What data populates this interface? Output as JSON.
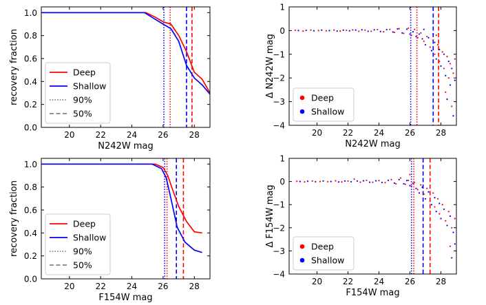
{
  "figure": {
    "colors": {
      "deep": "#ff0000",
      "shallow": "#0000ff",
      "style_legend": "#808080",
      "axis": "#000000"
    }
  },
  "chart_data": [
    {
      "id": "n242w_recovery",
      "type": "line",
      "xlabel": "N242W mag",
      "ylabel": "recovery fraction",
      "xlim": [
        18.2,
        29.0
      ],
      "ylim": [
        0.0,
        1.05
      ],
      "xticks": [
        20,
        22,
        24,
        26,
        28
      ],
      "yticks": [
        0.0,
        0.2,
        0.4,
        0.6,
        0.8,
        1.0
      ],
      "xtick_labels": [
        "20",
        "22",
        "24",
        "26",
        "28"
      ],
      "ytick_labels": [
        "0.0",
        "0.2",
        "0.4",
        "0.6",
        "0.8",
        "1.0"
      ],
      "series": [
        {
          "name": "Deep",
          "color": "#ff0000",
          "x": [
            18.2,
            24.9,
            25.5,
            26.0,
            26.5,
            27.0,
            27.5,
            28.0,
            28.5,
            29.0
          ],
          "y": [
            1.0,
            1.0,
            0.96,
            0.92,
            0.9,
            0.8,
            0.66,
            0.48,
            0.42,
            0.3
          ]
        },
        {
          "name": "Shallow",
          "color": "#0000ff",
          "x": [
            18.2,
            24.8,
            25.4,
            26.0,
            26.5,
            27.0,
            27.5,
            28.0,
            28.5,
            29.0
          ],
          "y": [
            1.0,
            1.0,
            0.95,
            0.9,
            0.86,
            0.75,
            0.54,
            0.43,
            0.37,
            0.29
          ]
        }
      ],
      "vlines": [
        {
          "x": 26.45,
          "color": "#ff0000",
          "style": "dotted"
        },
        {
          "x": 27.85,
          "color": "#ff0000",
          "style": "dashed"
        },
        {
          "x": 26.05,
          "color": "#0000ff",
          "style": "dotted"
        },
        {
          "x": 27.5,
          "color": "#0000ff",
          "style": "dashed"
        }
      ],
      "legend": {
        "position": "lower-left",
        "entries": [
          {
            "label": "Deep",
            "color": "#ff0000",
            "style": "solid"
          },
          {
            "label": "Shallow",
            "color": "#0000ff",
            "style": "solid"
          },
          {
            "label": "90%",
            "color": "#808080",
            "style": "dotted"
          },
          {
            "label": "50%",
            "color": "#808080",
            "style": "dashed"
          }
        ]
      }
    },
    {
      "id": "n242w_delta",
      "type": "scatter",
      "xlabel": "N242W mag",
      "ylabel": "Δ N242W mag",
      "xlim": [
        18.2,
        29.0
      ],
      "ylim": [
        -4.0,
        1.0
      ],
      "xticks": [
        20,
        22,
        24,
        26,
        28
      ],
      "yticks": [
        1,
        0,
        -1,
        -2,
        -3,
        -4
      ],
      "xtick_labels": [
        "20",
        "22",
        "24",
        "26",
        "28"
      ],
      "ytick_labels": [
        "1",
        "0",
        "−1",
        "−2",
        "−3",
        "−4"
      ],
      "series": [
        {
          "name": "Deep",
          "color": "#ff0000",
          "points": [
            [
              18.6,
              0.01
            ],
            [
              19.1,
              -0.02
            ],
            [
              19.6,
              0.02
            ],
            [
              20.1,
              0.0
            ],
            [
              20.6,
              -0.01
            ],
            [
              21.1,
              0.02
            ],
            [
              21.5,
              -0.02
            ],
            [
              21.9,
              0.01
            ],
            [
              22.3,
              0.03
            ],
            [
              22.7,
              -0.03
            ],
            [
              23.1,
              0.02
            ],
            [
              23.5,
              -0.03
            ],
            [
              23.9,
              0.04
            ],
            [
              24.3,
              -0.05
            ],
            [
              24.7,
              0.05
            ],
            [
              25.0,
              -0.08
            ],
            [
              25.3,
              0.08
            ],
            [
              25.6,
              -0.12
            ],
            [
              25.9,
              0.1
            ],
            [
              26.1,
              -0.2
            ],
            [
              26.3,
              0.05
            ],
            [
              26.5,
              -0.3
            ],
            [
              26.7,
              -0.1
            ],
            [
              26.9,
              -0.45
            ],
            [
              27.1,
              -0.25
            ],
            [
              27.3,
              -0.7
            ],
            [
              27.5,
              -0.4
            ],
            [
              27.6,
              -1.0
            ],
            [
              27.8,
              -0.6
            ],
            [
              27.9,
              -1.3
            ],
            [
              28.1,
              -0.9
            ],
            [
              28.2,
              -1.6
            ],
            [
              28.4,
              -1.1
            ],
            [
              28.5,
              -2.0
            ],
            [
              28.6,
              -1.4
            ],
            [
              28.8,
              -1.8
            ],
            [
              28.9,
              -1.2
            ],
            [
              28.3,
              -2.6
            ],
            [
              28.7,
              -3.2
            ],
            [
              27.7,
              -0.2
            ]
          ]
        },
        {
          "name": "Shallow",
          "color": "#0000ff",
          "points": [
            [
              18.8,
              0.0
            ],
            [
              19.3,
              0.01
            ],
            [
              19.8,
              -0.01
            ],
            [
              20.3,
              0.02
            ],
            [
              20.8,
              0.0
            ],
            [
              21.3,
              -0.02
            ],
            [
              21.7,
              0.02
            ],
            [
              22.1,
              -0.01
            ],
            [
              22.5,
              0.02
            ],
            [
              22.9,
              0.03
            ],
            [
              23.3,
              -0.03
            ],
            [
              23.7,
              0.03
            ],
            [
              24.1,
              -0.04
            ],
            [
              24.5,
              0.04
            ],
            [
              24.9,
              -0.06
            ],
            [
              25.2,
              0.07
            ],
            [
              25.5,
              -0.1
            ],
            [
              25.8,
              0.06
            ],
            [
              26.0,
              -0.15
            ],
            [
              26.2,
              -0.05
            ],
            [
              26.4,
              -0.25
            ],
            [
              26.6,
              -0.15
            ],
            [
              26.8,
              -0.35
            ],
            [
              27.0,
              -0.6
            ],
            [
              27.2,
              -0.3
            ],
            [
              27.4,
              -0.85
            ],
            [
              27.6,
              -0.5
            ],
            [
              27.7,
              -1.2
            ],
            [
              27.9,
              -0.8
            ],
            [
              28.0,
              -1.5
            ],
            [
              28.2,
              -1.0
            ],
            [
              28.3,
              -1.9
            ],
            [
              28.5,
              -1.3
            ],
            [
              28.6,
              -2.3
            ],
            [
              28.7,
              -1.6
            ],
            [
              28.9,
              -2.1
            ],
            [
              28.4,
              -2.9
            ],
            [
              28.8,
              -3.6
            ],
            [
              27.5,
              -0.15
            ],
            [
              26.9,
              0.05
            ]
          ]
        }
      ],
      "vlines": [
        {
          "x": 26.45,
          "color": "#ff0000",
          "style": "dotted"
        },
        {
          "x": 27.85,
          "color": "#ff0000",
          "style": "dashed"
        },
        {
          "x": 26.05,
          "color": "#0000ff",
          "style": "dotted"
        },
        {
          "x": 27.5,
          "color": "#0000ff",
          "style": "dashed"
        }
      ],
      "legend": {
        "position": "lower-left",
        "entries": [
          {
            "label": "Deep",
            "color": "#ff0000",
            "style": "marker"
          },
          {
            "label": "Shallow",
            "color": "#0000ff",
            "style": "marker"
          }
        ]
      }
    },
    {
      "id": "f154w_recovery",
      "type": "line",
      "xlabel": "F154W mag",
      "ylabel": "recovery fraction",
      "xlim": [
        18.2,
        29.0
      ],
      "ylim": [
        0.0,
        1.05
      ],
      "xticks": [
        20,
        22,
        24,
        26,
        28
      ],
      "yticks": [
        0.0,
        0.2,
        0.4,
        0.6,
        0.8,
        1.0
      ],
      "xtick_labels": [
        "20",
        "22",
        "24",
        "26",
        "28"
      ],
      "ytick_labels": [
        "0.0",
        "0.2",
        "0.4",
        "0.6",
        "0.8",
        "1.0"
      ],
      "series": [
        {
          "name": "Deep",
          "color": "#ff0000",
          "x": [
            18.2,
            25.5,
            26.0,
            26.3,
            26.6,
            27.0,
            27.5,
            28.0,
            28.5
          ],
          "y": [
            1.0,
            1.0,
            0.97,
            0.9,
            0.78,
            0.63,
            0.5,
            0.41,
            0.4
          ]
        },
        {
          "name": "Shallow",
          "color": "#0000ff",
          "x": [
            18.2,
            25.3,
            25.9,
            26.2,
            26.5,
            26.9,
            27.4,
            28.0,
            28.5
          ],
          "y": [
            1.0,
            1.0,
            0.96,
            0.88,
            0.7,
            0.45,
            0.32,
            0.25,
            0.23
          ]
        }
      ],
      "vlines": [
        {
          "x": 26.25,
          "color": "#ff0000",
          "style": "dotted"
        },
        {
          "x": 27.3,
          "color": "#ff0000",
          "style": "dashed"
        },
        {
          "x": 26.1,
          "color": "#0000ff",
          "style": "dotted"
        },
        {
          "x": 26.85,
          "color": "#0000ff",
          "style": "dashed"
        }
      ],
      "legend": {
        "position": "lower-left",
        "entries": [
          {
            "label": "Deep",
            "color": "#ff0000",
            "style": "solid"
          },
          {
            "label": "Shallow",
            "color": "#0000ff",
            "style": "solid"
          },
          {
            "label": "90%",
            "color": "#808080",
            "style": "dotted"
          },
          {
            "label": "50%",
            "color": "#808080",
            "style": "dashed"
          }
        ]
      }
    },
    {
      "id": "f154w_delta",
      "type": "scatter",
      "xlabel": "F154W mag",
      "ylabel": "Δ F154W mag",
      "xlim": [
        18.2,
        29.0
      ],
      "ylim": [
        -4.0,
        1.0
      ],
      "xticks": [
        20,
        22,
        24,
        26,
        28
      ],
      "yticks": [
        1,
        0,
        -1,
        -2,
        -3,
        -4
      ],
      "xtick_labels": [
        "20",
        "22",
        "24",
        "26",
        "28"
      ],
      "ytick_labels": [
        "1",
        "0",
        "−1",
        "−2",
        "−3",
        "−4"
      ],
      "series": [
        {
          "name": "Deep",
          "color": "#ff0000",
          "points": [
            [
              18.7,
              0.01
            ],
            [
              19.2,
              -0.02
            ],
            [
              19.7,
              0.02
            ],
            [
              20.2,
              0.0
            ],
            [
              20.7,
              -0.01
            ],
            [
              21.2,
              0.03
            ],
            [
              21.6,
              -0.02
            ],
            [
              22.0,
              0.02
            ],
            [
              22.4,
              0.1
            ],
            [
              22.8,
              -0.03
            ],
            [
              23.2,
              0.05
            ],
            [
              23.6,
              -0.03
            ],
            [
              24.0,
              0.04
            ],
            [
              24.4,
              -0.05
            ],
            [
              24.8,
              0.08
            ],
            [
              25.1,
              -0.1
            ],
            [
              25.4,
              0.15
            ],
            [
              25.7,
              -0.12
            ],
            [
              25.9,
              0.05
            ],
            [
              26.1,
              -0.2
            ],
            [
              26.3,
              -0.05
            ],
            [
              26.5,
              -0.35
            ],
            [
              26.7,
              -0.15
            ],
            [
              26.9,
              -0.55
            ],
            [
              27.1,
              -0.3
            ],
            [
              27.3,
              -0.85
            ],
            [
              27.5,
              -0.5
            ],
            [
              27.6,
              -1.1
            ],
            [
              27.8,
              -0.75
            ],
            [
              27.9,
              -1.4
            ],
            [
              28.1,
              -1.0
            ],
            [
              28.3,
              -1.7
            ],
            [
              28.5,
              -1.3
            ],
            [
              28.7,
              -2.0
            ],
            [
              28.9,
              -1.6
            ],
            [
              28.6,
              -2.8
            ],
            [
              26.0,
              0.3
            ]
          ]
        },
        {
          "name": "Shallow",
          "color": "#0000ff",
          "points": [
            [
              18.9,
              0.0
            ],
            [
              19.4,
              0.01
            ],
            [
              19.9,
              -0.01
            ],
            [
              20.4,
              0.02
            ],
            [
              20.9,
              0.0
            ],
            [
              21.4,
              -0.02
            ],
            [
              21.8,
              0.02
            ],
            [
              22.2,
              -0.01
            ],
            [
              22.6,
              0.02
            ],
            [
              23.0,
              0.03
            ],
            [
              23.4,
              -0.03
            ],
            [
              23.8,
              0.03
            ],
            [
              24.2,
              -0.04
            ],
            [
              24.6,
              0.05
            ],
            [
              25.0,
              -0.07
            ],
            [
              25.3,
              0.08
            ],
            [
              25.6,
              -0.1
            ],
            [
              25.8,
              0.04
            ],
            [
              26.0,
              -0.18
            ],
            [
              26.2,
              -0.08
            ],
            [
              26.4,
              -0.3
            ],
            [
              26.6,
              -0.5
            ],
            [
              26.8,
              -0.25
            ],
            [
              27.0,
              -0.75
            ],
            [
              27.2,
              -0.45
            ],
            [
              27.4,
              -1.0
            ],
            [
              27.6,
              -0.7
            ],
            [
              27.7,
              -1.3
            ],
            [
              27.9,
              -0.95
            ],
            [
              28.0,
              -1.6
            ],
            [
              28.2,
              -1.2
            ],
            [
              28.4,
              -1.9
            ],
            [
              28.6,
              -1.5
            ],
            [
              28.8,
              -2.2
            ],
            [
              28.9,
              -2.7
            ],
            [
              28.7,
              -3.3
            ]
          ]
        }
      ],
      "vlines": [
        {
          "x": 26.25,
          "color": "#ff0000",
          "style": "dotted"
        },
        {
          "x": 27.3,
          "color": "#ff0000",
          "style": "dashed"
        },
        {
          "x": 26.1,
          "color": "#0000ff",
          "style": "dotted"
        },
        {
          "x": 26.85,
          "color": "#0000ff",
          "style": "dashed"
        }
      ],
      "legend": {
        "position": "lower-left",
        "entries": [
          {
            "label": "Deep",
            "color": "#ff0000",
            "style": "marker"
          },
          {
            "label": "Shallow",
            "color": "#0000ff",
            "style": "marker"
          }
        ]
      }
    }
  ]
}
